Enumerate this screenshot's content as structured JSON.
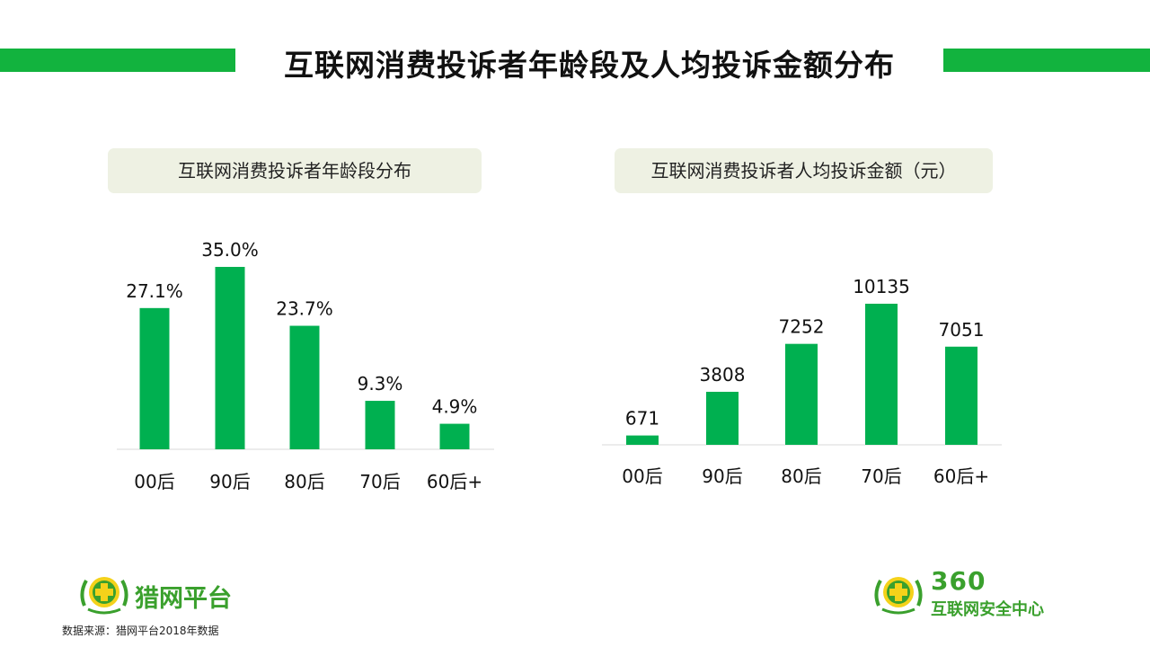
{
  "title": "互联网消费投诉者年龄段及人均投诉金额分布",
  "colors": {
    "accent": "#12b33e",
    "bar": "#00b050",
    "header_bg": "#eef1e3",
    "logo_yellow": "#f4d21a",
    "logo_green": "#3aa02d"
  },
  "chart_data": [
    {
      "type": "bar",
      "title": "互联网消费投诉者年龄段分布",
      "categories": [
        "00后",
        "90后",
        "80后",
        "70后",
        "60后+"
      ],
      "values": [
        27.1,
        35.0,
        23.7,
        9.3,
        4.9
      ],
      "value_labels": [
        "27.1%",
        "35.0%",
        "23.7%",
        "9.3%",
        "4.9%"
      ],
      "unit": "%",
      "ylim": [
        0,
        35.0
      ],
      "grid": false
    },
    {
      "type": "bar",
      "title": "互联网消费投诉者人均投诉金额（元）",
      "categories": [
        "00后",
        "90后",
        "80后",
        "70后",
        "60后+"
      ],
      "values": [
        671,
        3808,
        7252,
        10135,
        7051
      ],
      "value_labels": [
        "671",
        "3808",
        "7252",
        "10135",
        "7051"
      ],
      "unit": "元",
      "ylim": [
        0,
        10135
      ],
      "grid": false
    }
  ],
  "logos": {
    "left": {
      "text": "猎网平台",
      "icon": "green-plus-laurel-icon"
    },
    "right": {
      "brand": "360",
      "text": "互联网安全中心",
      "icon": "green-plus-laurel-icon"
    }
  },
  "source_note": "数据来源：猎网平台2018年数据"
}
